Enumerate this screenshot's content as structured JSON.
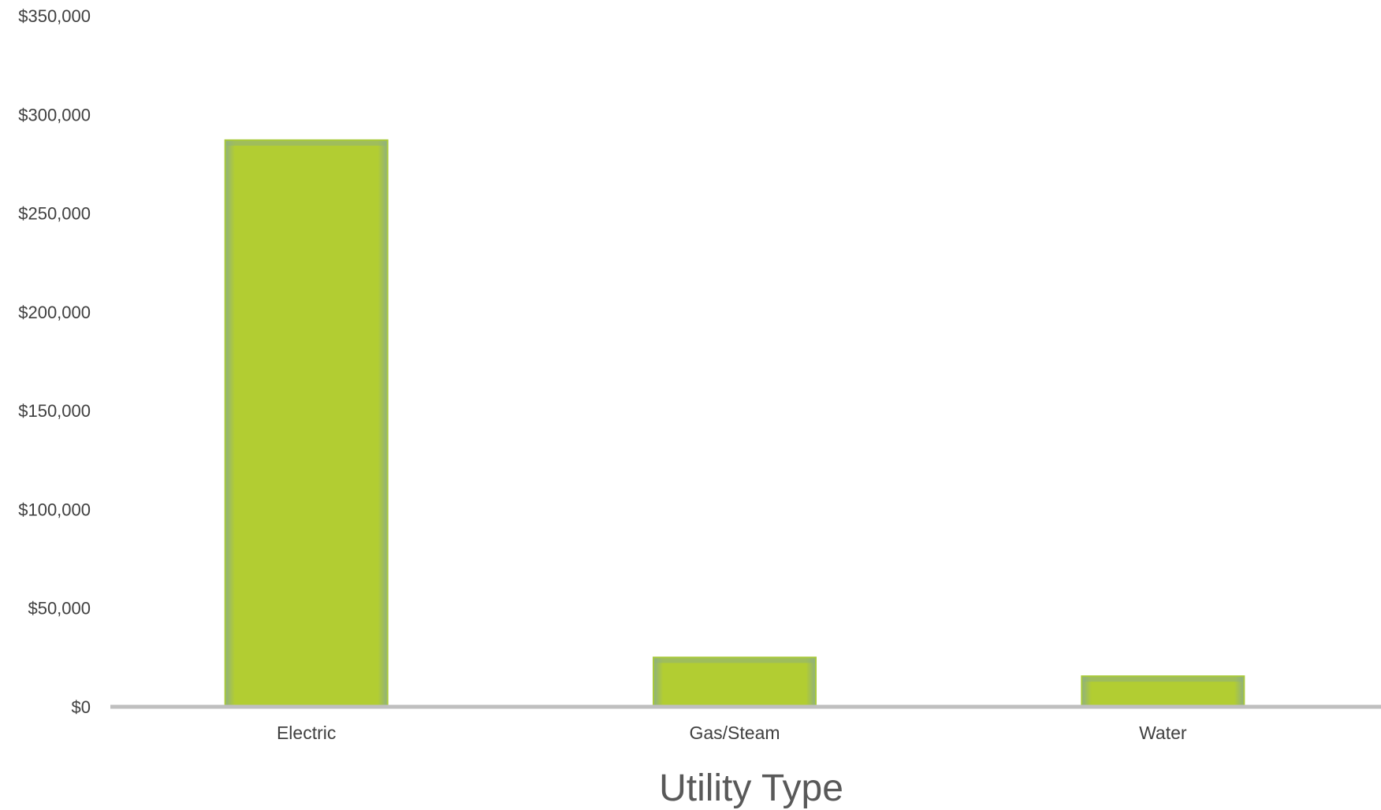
{
  "chart_data": {
    "type": "bar",
    "title": "",
    "xlabel": "Utility Type",
    "ylabel": "",
    "categories": [
      "Electric",
      "Gas/Steam",
      "Water"
    ],
    "series": [
      {
        "values": [
          287000,
          25000,
          15500
        ]
      }
    ],
    "ylim": [
      0,
      350000
    ],
    "yticks": [
      0,
      50000,
      100000,
      150000,
      200000,
      250000,
      300000,
      350000
    ],
    "ytick_labels": [
      "$0",
      "$50,000",
      "$100,000",
      "$150,000",
      "$200,000",
      "$250,000",
      "$300,000",
      "$350,000"
    ],
    "grid": false,
    "legend": "none",
    "colors": {
      "bar_center": "#b2cd32",
      "bar_edge": "#8fb07f",
      "bar_border": "#a8c93a",
      "axis_line": "#bfbfbf",
      "text": "#404040",
      "title_text": "#595959"
    }
  }
}
